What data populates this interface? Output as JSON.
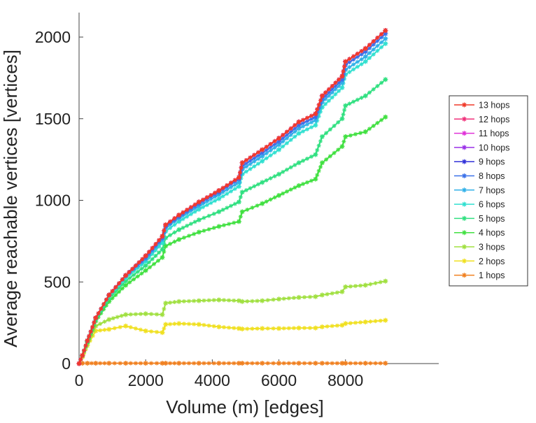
{
  "chart_data": {
    "type": "line",
    "xlabel": "Volume (m) [edges]",
    "ylabel": "Average reachable vertices [vertices]",
    "xlim": [
      0,
      10800
    ],
    "ylim": [
      0,
      2150
    ],
    "xticks": [
      0,
      2000,
      4000,
      6000,
      8000
    ],
    "yticks": [
      0,
      500,
      1000,
      1500,
      2000
    ],
    "grid": false,
    "legend_position": "right",
    "marker": "asterisk",
    "series": [
      {
        "name": "13 hops",
        "color": "#f03a2a",
        "x": [
          0,
          100,
          250,
          500,
          900,
          1400,
          2000,
          2500,
          2600,
          3000,
          3600,
          4200,
          4800,
          4900,
          5500,
          6000,
          6600,
          7100,
          7300,
          7900,
          8000,
          8600,
          9200
        ],
        "y": [
          0,
          50,
          140,
          280,
          420,
          540,
          660,
          780,
          850,
          910,
          990,
          1060,
          1140,
          1230,
          1310,
          1380,
          1480,
          1530,
          1640,
          1760,
          1850,
          1930,
          2040
        ]
      },
      {
        "name": "12 hops",
        "color": "#f0307a",
        "x": [
          0,
          100,
          250,
          500,
          900,
          1400,
          2000,
          2500,
          2600,
          3000,
          3600,
          4200,
          4800,
          4900,
          5500,
          6000,
          6600,
          7100,
          7300,
          7900,
          8000,
          8600,
          9200
        ],
        "y": [
          0,
          50,
          140,
          280,
          420,
          540,
          660,
          780,
          850,
          910,
          990,
          1060,
          1140,
          1230,
          1310,
          1380,
          1480,
          1530,
          1640,
          1760,
          1850,
          1930,
          2040
        ]
      },
      {
        "name": "11 hops",
        "color": "#e030d8",
        "x": [
          0,
          100,
          250,
          500,
          900,
          1400,
          2000,
          2500,
          2600,
          3000,
          3600,
          4200,
          4800,
          4900,
          5500,
          6000,
          6600,
          7100,
          7300,
          7900,
          8000,
          8600,
          9200
        ],
        "y": [
          0,
          50,
          140,
          280,
          420,
          540,
          660,
          780,
          850,
          910,
          990,
          1060,
          1140,
          1230,
          1310,
          1380,
          1480,
          1530,
          1640,
          1760,
          1850,
          1930,
          2040
        ]
      },
      {
        "name": "10 hops",
        "color": "#9a30e8",
        "x": [
          0,
          100,
          250,
          500,
          900,
          1400,
          2000,
          2500,
          2600,
          3000,
          3600,
          4200,
          4800,
          4900,
          5500,
          6000,
          6600,
          7100,
          7300,
          7900,
          8000,
          8600,
          9200
        ],
        "y": [
          0,
          50,
          140,
          280,
          420,
          540,
          660,
          780,
          850,
          910,
          990,
          1060,
          1140,
          1230,
          1310,
          1380,
          1480,
          1530,
          1640,
          1760,
          1850,
          1930,
          2040
        ]
      },
      {
        "name": "9 hops",
        "color": "#3030d8",
        "x": [
          0,
          100,
          250,
          500,
          900,
          1400,
          2000,
          2500,
          2600,
          3000,
          3600,
          4200,
          4800,
          4900,
          5500,
          6000,
          6600,
          7100,
          7300,
          7900,
          8000,
          8600,
          9200
        ],
        "y": [
          0,
          50,
          140,
          280,
          420,
          540,
          660,
          780,
          850,
          910,
          990,
          1060,
          1140,
          1230,
          1310,
          1380,
          1480,
          1530,
          1640,
          1760,
          1850,
          1930,
          2040
        ]
      },
      {
        "name": "8 hops",
        "color": "#3a70e8",
        "x": [
          0,
          100,
          250,
          500,
          900,
          1400,
          2000,
          2500,
          2600,
          3000,
          3600,
          4200,
          4800,
          4900,
          5500,
          6000,
          6600,
          7100,
          7300,
          7900,
          8000,
          8600,
          9200
        ],
        "y": [
          0,
          50,
          140,
          280,
          420,
          540,
          650,
          770,
          840,
          900,
          980,
          1050,
          1130,
          1210,
          1290,
          1360,
          1460,
          1510,
          1620,
          1740,
          1830,
          1910,
          2020
        ]
      },
      {
        "name": "7 hops",
        "color": "#30b0e8",
        "x": [
          0,
          100,
          250,
          500,
          900,
          1400,
          2000,
          2500,
          2600,
          3000,
          3600,
          4200,
          4800,
          4900,
          5500,
          6000,
          6600,
          7100,
          7300,
          7900,
          8000,
          8600,
          9200
        ],
        "y": [
          0,
          50,
          140,
          280,
          420,
          535,
          640,
          760,
          830,
          890,
          965,
          1035,
          1110,
          1190,
          1270,
          1340,
          1440,
          1490,
          1600,
          1720,
          1800,
          1880,
          1990
        ]
      },
      {
        "name": "6 hops",
        "color": "#30e0d0",
        "x": [
          0,
          100,
          250,
          500,
          900,
          1400,
          2000,
          2500,
          2600,
          3000,
          3600,
          4200,
          4800,
          4900,
          5500,
          6000,
          6600,
          7100,
          7300,
          7900,
          8000,
          8600,
          9200
        ],
        "y": [
          0,
          50,
          140,
          280,
          415,
          525,
          625,
          740,
          810,
          870,
          945,
          1010,
          1085,
          1160,
          1240,
          1310,
          1410,
          1460,
          1570,
          1690,
          1770,
          1850,
          1960
        ]
      },
      {
        "name": "5 hops",
        "color": "#30e080",
        "x": [
          0,
          100,
          250,
          500,
          900,
          1400,
          2000,
          2500,
          2600,
          3000,
          3600,
          4200,
          4800,
          4900,
          5500,
          6000,
          6600,
          7100,
          7300,
          7900,
          8000,
          8600,
          9200
        ],
        "y": [
          0,
          50,
          135,
          270,
          400,
          505,
          600,
          700,
          770,
          820,
          880,
          930,
          990,
          1050,
          1110,
          1160,
          1230,
          1280,
          1390,
          1500,
          1580,
          1640,
          1740
        ]
      },
      {
        "name": "4 hops",
        "color": "#40e040",
        "x": [
          0,
          100,
          250,
          500,
          900,
          1400,
          2000,
          2500,
          2600,
          3000,
          3600,
          4200,
          4800,
          4900,
          5500,
          6000,
          6600,
          7100,
          7300,
          7900,
          8000,
          8600,
          9200
        ],
        "y": [
          0,
          50,
          130,
          260,
          380,
          480,
          570,
          650,
          720,
          760,
          805,
          840,
          870,
          930,
          980,
          1030,
          1090,
          1130,
          1230,
          1330,
          1390,
          1420,
          1510
        ]
      },
      {
        "name": "3 hops",
        "color": "#a0e040",
        "x": [
          0,
          100,
          250,
          500,
          900,
          1400,
          2000,
          2500,
          2600,
          3000,
          3600,
          4200,
          4800,
          4900,
          5500,
          6000,
          6600,
          7100,
          7300,
          7900,
          8000,
          8600,
          9200
        ],
        "y": [
          0,
          45,
          120,
          230,
          270,
          300,
          305,
          300,
          370,
          380,
          385,
          390,
          385,
          380,
          385,
          395,
          405,
          410,
          420,
          440,
          470,
          480,
          505
        ]
      },
      {
        "name": "2 hops",
        "color": "#f0e020",
        "x": [
          0,
          100,
          250,
          500,
          900,
          1400,
          2000,
          2500,
          2600,
          3000,
          3600,
          4200,
          4800,
          4900,
          5500,
          6000,
          6600,
          7100,
          7300,
          7900,
          8000,
          8600,
          9200
        ],
        "y": [
          0,
          40,
          110,
          200,
          210,
          230,
          200,
          190,
          240,
          245,
          240,
          225,
          215,
          212,
          215,
          215,
          218,
          218,
          225,
          235,
          245,
          255,
          265
        ]
      },
      {
        "name": "1 hops",
        "color": "#f08020",
        "x": [
          0,
          100,
          250,
          500,
          900,
          1400,
          2000,
          2500,
          2600,
          3000,
          3600,
          4200,
          4800,
          4900,
          5500,
          6000,
          6600,
          7100,
          7300,
          7900,
          8000,
          8600,
          9200
        ],
        "y": [
          0,
          2,
          2,
          2,
          2,
          2,
          2,
          2,
          2,
          2,
          2,
          2,
          2,
          2,
          2,
          2,
          2,
          2,
          2,
          2,
          2,
          2,
          2
        ]
      }
    ]
  }
}
